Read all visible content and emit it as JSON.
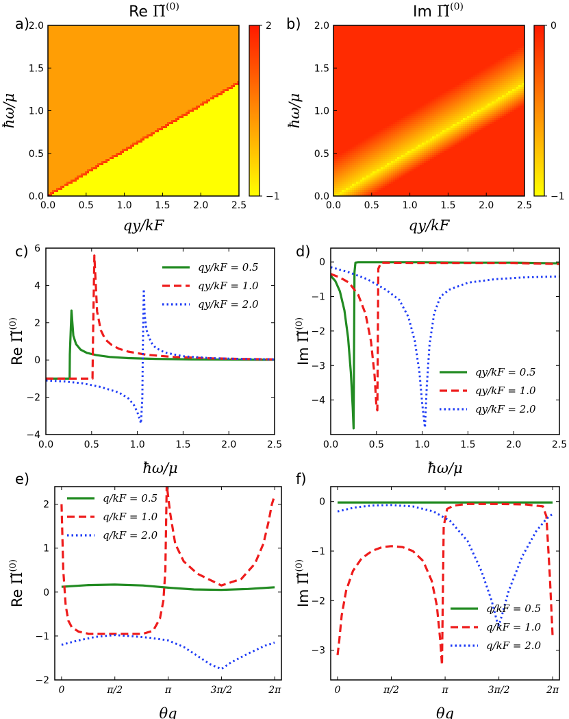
{
  "figure": {
    "heatmaps": [
      {
        "label": "a)",
        "title": "Re Π̃(0)",
        "title_text": "Re",
        "title_symbol": "Π̃",
        "title_sup": "(0)",
        "xlabel": "q_y/k_F",
        "ylabel": "ħω/μ",
        "colorbar_ticks": [
          "2",
          "−1"
        ]
      },
      {
        "label": "b)",
        "title": "Im Π̃(0)",
        "title_text": "Im",
        "title_symbol": "Π̃",
        "title_sup": "(0)",
        "xlabel": "q_y/k_F",
        "ylabel": "ħω/μ",
        "colorbar_ticks": [
          "0",
          "−1"
        ]
      }
    ]
  },
  "chart_data": [
    {
      "panel": "a",
      "type": "heatmap",
      "title": "Re Π̃(0)",
      "xlabel": "q_y/k_F",
      "ylabel": "ħω/μ",
      "xlim": [
        0,
        2.5
      ],
      "ylim": [
        0,
        2.0
      ],
      "xticks": [
        "0.0",
        "0.5",
        "1.0",
        "1.5",
        "2.0",
        "2.5"
      ],
      "yticks": [
        "0.0",
        "0.5",
        "1.0",
        "1.5",
        "2.0"
      ],
      "colorbar": {
        "min": -1,
        "max": 2,
        "ticks": [
          "2",
          "−1"
        ]
      },
      "regions": {
        "above_boundary_value": 0.2,
        "below_boundary_value": -1,
        "boundary": "ħω/μ ≈ 0.53·q_y/k_F",
        "boundary_peak_value": 1.6
      }
    },
    {
      "panel": "b",
      "type": "heatmap",
      "title": "Im Π̃(0)",
      "xlabel": "q_y/k_F",
      "ylabel": "ħω/μ",
      "xlim": [
        0,
        2.5
      ],
      "ylim": [
        0,
        2.0
      ],
      "xticks": [
        "0.0",
        "0.5",
        "1.0",
        "1.5",
        "2.0",
        "2.5"
      ],
      "yticks": [
        "0.0",
        "0.5",
        "1.0",
        "1.5",
        "2.0"
      ],
      "colorbar": {
        "min": -1,
        "max": 0,
        "ticks": [
          "0",
          "−1"
        ]
      },
      "regions": {
        "above_boundary_value": 0,
        "near_boundary_value": -1,
        "boundary": "ħω/μ ≈ 0.53·q_y/k_F"
      }
    },
    {
      "panel": "c",
      "label": "c)",
      "type": "line",
      "ylabel_text": "Re",
      "ylabel_symbol": "Π̃",
      "ylabel_sup": "(0)",
      "xlabel": "ħω/μ",
      "xlim": [
        0,
        2.5
      ],
      "ylim": [
        -4,
        6
      ],
      "xticks": [
        "0.0",
        "0.5",
        "1.0",
        "1.5",
        "2.0",
        "2.5"
      ],
      "yticks": [
        "−4",
        "−2",
        "0",
        "2",
        "4",
        "6"
      ],
      "legend_position": "top-right",
      "series": [
        {
          "name": "q_y/k_F = 0.5",
          "style": "solid",
          "color": "#228b22",
          "x": [
            0,
            0.26,
            0.262,
            0.28,
            0.3,
            0.33,
            0.38,
            0.45,
            0.55,
            0.7,
            0.9,
            1.2,
            1.6,
            2.0,
            2.5
          ],
          "y": [
            -1.0,
            -1.0,
            0.3,
            2.65,
            1.3,
            0.85,
            0.55,
            0.38,
            0.26,
            0.16,
            0.1,
            0.06,
            0.03,
            0.02,
            0.01
          ]
        },
        {
          "name": "q_y/k_F = 1.0",
          "style": "dashed",
          "color": "#ee1c1c",
          "x": [
            0,
            0.51,
            0.515,
            0.53,
            0.56,
            0.6,
            0.65,
            0.72,
            0.8,
            0.9,
            1.1,
            1.4,
            1.8,
            2.2,
            2.5
          ],
          "y": [
            -1.0,
            -1.0,
            1.0,
            5.6,
            2.6,
            1.6,
            1.1,
            0.8,
            0.6,
            0.45,
            0.28,
            0.16,
            0.09,
            0.05,
            0.03
          ]
        },
        {
          "name": "q_y/k_F = 2.0",
          "style": "dotted",
          "color": "#1f3cf5",
          "x": [
            0,
            0.2,
            0.4,
            0.6,
            0.8,
            0.9,
            0.96,
            1.0,
            1.02,
            1.04,
            1.055,
            1.06,
            1.07,
            1.08,
            1.1,
            1.15,
            1.2,
            1.3,
            1.5,
            1.8,
            2.1,
            2.5
          ],
          "y": [
            -1.1,
            -1.15,
            -1.25,
            -1.45,
            -1.75,
            -2.05,
            -2.4,
            -2.8,
            -3.1,
            -3.4,
            -2.0,
            0.5,
            3.8,
            2.4,
            1.6,
            0.95,
            0.65,
            0.4,
            0.2,
            0.1,
            0.06,
            0.03
          ]
        }
      ]
    },
    {
      "panel": "d",
      "label": "d)",
      "type": "line",
      "ylabel_text": "Im",
      "ylabel_symbol": "Π̃",
      "ylabel_sup": "(0)",
      "xlabel": "ħω/μ",
      "xlim": [
        0,
        2.5
      ],
      "ylim": [
        -5,
        0.4
      ],
      "xticks": [
        "0.0",
        "0.5",
        "1.0",
        "1.5",
        "2.0",
        "2.5"
      ],
      "yticks": [
        "0",
        "−1",
        "−2",
        "−3",
        "−4"
      ],
      "legend_position": "lower-right",
      "series": [
        {
          "name": "q_y/k_F = 0.5",
          "style": "solid",
          "color": "#228b22",
          "x": [
            0,
            0.05,
            0.1,
            0.15,
            0.19,
            0.22,
            0.24,
            0.25,
            0.26,
            0.27,
            0.3,
            0.5,
            1.0,
            1.5,
            2.0,
            2.5
          ],
          "y": [
            -0.4,
            -0.55,
            -0.85,
            -1.4,
            -2.2,
            -3.2,
            -4.2,
            -4.82,
            -0.3,
            -0.02,
            -0.01,
            -0.01,
            -0.01,
            -0.02,
            -0.02,
            -0.04
          ]
        },
        {
          "name": "q_y/k_F = 1.0",
          "style": "dashed",
          "color": "#ee1c1c",
          "x": [
            0,
            0.1,
            0.2,
            0.3,
            0.38,
            0.44,
            0.48,
            0.5,
            0.51,
            0.52,
            0.55,
            1.0,
            1.5,
            2.0,
            2.5
          ],
          "y": [
            -0.35,
            -0.45,
            -0.6,
            -0.95,
            -1.5,
            -2.3,
            -3.3,
            -4.2,
            -4.3,
            -0.2,
            -0.02,
            -0.03,
            -0.03,
            -0.03,
            -0.06
          ]
        },
        {
          "name": "q_y/k_F = 2.0",
          "style": "dotted",
          "color": "#1f3cf5",
          "x": [
            0,
            0.2,
            0.4,
            0.6,
            0.75,
            0.85,
            0.92,
            0.97,
            1.0,
            1.03,
            1.05,
            1.08,
            1.13,
            1.2,
            1.3,
            1.5,
            1.8,
            2.1,
            2.5
          ],
          "y": [
            -0.15,
            -0.3,
            -0.5,
            -0.8,
            -1.1,
            -1.6,
            -2.3,
            -3.2,
            -4.1,
            -4.8,
            -3.6,
            -2.4,
            -1.5,
            -1.0,
            -0.8,
            -0.6,
            -0.5,
            -0.45,
            -0.42
          ]
        }
      ]
    },
    {
      "panel": "e",
      "label": "e)",
      "type": "line",
      "ylabel_text": "Re",
      "ylabel_symbol": "Π̃",
      "ylabel_sup": "(0)",
      "xlabel": "θ_q",
      "xlim": [
        -0.2,
        6.48
      ],
      "ylim": [
        -2,
        2.4
      ],
      "xticks": [
        "0",
        "π/2",
        "π",
        "3π/2",
        "2π"
      ],
      "yticks": [
        "−2",
        "−1",
        "0",
        "1",
        "2"
      ],
      "legend_position": "top-left",
      "series": [
        {
          "name": "q/k_F = 0.5",
          "style": "solid",
          "color": "#228b22",
          "x": [
            0,
            0.8,
            1.57,
            2.4,
            3.14,
            3.9,
            4.71,
            5.5,
            6.28
          ],
          "y": [
            0.12,
            0.16,
            0.17,
            0.15,
            0.1,
            0.06,
            0.05,
            0.07,
            0.11
          ]
        },
        {
          "name": "q/k_F = 1.0",
          "style": "dashed",
          "color": "#ee1c1c",
          "x": [
            0,
            0.05,
            0.12,
            0.2,
            0.3,
            0.5,
            0.8,
            1.2,
            1.57,
            2.0,
            2.4,
            2.7,
            2.9,
            3.0,
            3.06,
            3.1,
            3.2,
            3.35,
            3.6,
            4.0,
            4.71,
            5.3,
            5.7,
            5.95,
            6.1,
            6.2,
            6.28
          ],
          "y": [
            2.0,
            0.5,
            -0.3,
            -0.65,
            -0.8,
            -0.9,
            -0.95,
            -0.95,
            -0.95,
            -0.95,
            -0.95,
            -0.88,
            -0.6,
            -0.2,
            0.5,
            2.45,
            1.8,
            1.1,
            0.7,
            0.42,
            0.15,
            0.3,
            0.65,
            1.1,
            1.6,
            2.0,
            2.2
          ]
        },
        {
          "name": "q/k_F = 2.0",
          "style": "dotted",
          "color": "#1f3cf5",
          "x": [
            0,
            0.5,
            1.0,
            1.57,
            2.0,
            2.6,
            3.14,
            3.6,
            4.0,
            4.4,
            4.71,
            5.0,
            5.5,
            6.0,
            6.28
          ],
          "y": [
            -1.2,
            -1.1,
            -1.02,
            -0.98,
            -1.0,
            -1.04,
            -1.1,
            -1.25,
            -1.45,
            -1.65,
            -1.75,
            -1.6,
            -1.4,
            -1.22,
            -1.15
          ]
        }
      ]
    },
    {
      "panel": "f",
      "label": "f)",
      "type": "line",
      "ylabel_text": "Im",
      "ylabel_symbol": "Π̃",
      "ylabel_sup": "(0)",
      "xlabel": "θ_q",
      "xlim": [
        -0.2,
        6.48
      ],
      "ylim": [
        -3.6,
        0.3
      ],
      "xticks": [
        "0",
        "π/2",
        "π",
        "3π/2",
        "2π"
      ],
      "yticks": [
        "0",
        "−1",
        "−2",
        "−3"
      ],
      "legend_position": "lower-right",
      "series": [
        {
          "name": "q/k_F = 0.5",
          "style": "solid",
          "color": "#228b22",
          "x": [
            0,
            1.57,
            3.14,
            4.71,
            6.28
          ],
          "y": [
            -0.02,
            -0.02,
            -0.02,
            -0.02,
            -0.02
          ]
        },
        {
          "name": "q/k_F = 1.0",
          "style": "dashed",
          "color": "#ee1c1c",
          "x": [
            0,
            0.05,
            0.12,
            0.25,
            0.45,
            0.7,
            1.0,
            1.3,
            1.57,
            1.9,
            2.2,
            2.5,
            2.75,
            2.9,
            3.0,
            3.05,
            3.1,
            3.2,
            3.4,
            3.8,
            4.71,
            5.5,
            6.0,
            6.1,
            6.2,
            6.28
          ],
          "y": [
            -3.1,
            -2.8,
            -2.3,
            -1.8,
            -1.4,
            -1.15,
            -1.0,
            -0.92,
            -0.9,
            -0.92,
            -1.0,
            -1.2,
            -1.6,
            -2.1,
            -2.8,
            -3.3,
            -0.5,
            -0.15,
            -0.08,
            -0.05,
            -0.05,
            -0.06,
            -0.1,
            -0.3,
            -1.5,
            -2.7
          ]
        },
        {
          "name": "q/k_F = 2.0",
          "style": "dotted",
          "color": "#1f3cf5",
          "x": [
            0,
            0.5,
            1.0,
            1.57,
            2.2,
            2.8,
            3.3,
            3.8,
            4.2,
            4.5,
            4.65,
            4.71,
            4.8,
            5.0,
            5.4,
            5.8,
            6.1,
            6.28
          ],
          "y": [
            -0.2,
            -0.12,
            -0.08,
            -0.07,
            -0.1,
            -0.2,
            -0.4,
            -0.8,
            -1.4,
            -2.0,
            -2.4,
            -2.5,
            -2.3,
            -1.8,
            -1.1,
            -0.6,
            -0.35,
            -0.25
          ]
        }
      ]
    }
  ]
}
